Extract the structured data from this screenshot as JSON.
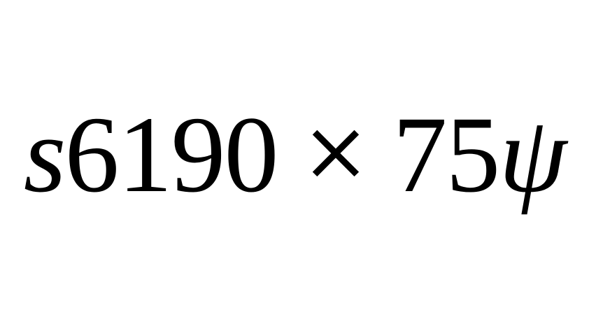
{
  "expression": {
    "variable_left": "s",
    "number_left": "6190",
    "operator": "×",
    "number_right": "75",
    "variable_right": "ψ"
  },
  "colors": {
    "background": "#ffffff",
    "text": "#000000"
  }
}
